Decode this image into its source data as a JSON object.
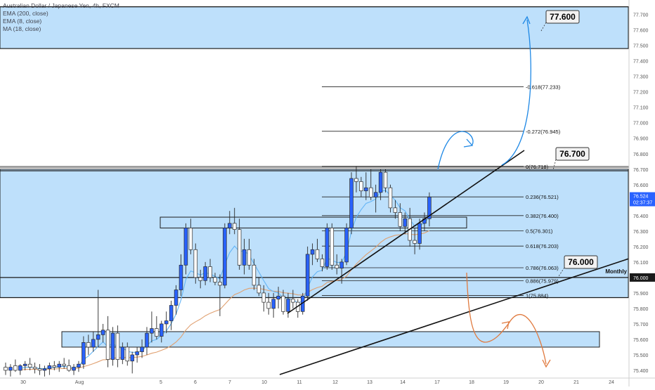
{
  "legend": {
    "title": "Australian Dollar / Japanese Yen, 4h, FXCM",
    "indicators": [
      "EMA (200, close)",
      "EMA (8, close)",
      "MA (18, close)"
    ]
  },
  "price_labels": {
    "current": "76.524",
    "countdown": "02:37:37",
    "monthly": "76.000"
  },
  "annotations": {
    "target_up": "77.600",
    "resistance": "76.700",
    "support": "76.000",
    "monthly_label": "Monthly"
  },
  "colors": {
    "up_candle": "#2962ff",
    "down_candle": "#ffffff",
    "zone_fill": "#bbdefb",
    "ema200": "#e0a070",
    "ema8": "#64b5f6",
    "up_arrow": "#1e88e5",
    "down_arrow": "#e07a3f"
  },
  "chart_data": {
    "type": "candlestick",
    "title": "Australian Dollar / Japanese Yen, 4h, FXCM",
    "ylim": [
      75.35,
      77.78
    ],
    "y_ticks": [
      "77.700",
      "77.600",
      "77.500",
      "77.400",
      "77.300",
      "77.200",
      "77.100",
      "77.000",
      "76.900",
      "76.800",
      "76.700",
      "76.600",
      "76.500",
      "76.400",
      "76.300",
      "76.200",
      "76.100",
      "76.000",
      "75.900",
      "75.800",
      "75.700",
      "75.600",
      "75.500",
      "75.400"
    ],
    "x_ticks": [
      "30",
      "Aug",
      "5",
      "6",
      "7",
      "10",
      "11",
      "12",
      "13",
      "14",
      "17",
      "18",
      "19",
      "20",
      "21",
      "24"
    ],
    "candles": [
      [
        75.42,
        75.45,
        75.37,
        75.4
      ],
      [
        75.4,
        75.44,
        75.36,
        75.42
      ],
      [
        75.43,
        75.47,
        75.39,
        75.4
      ],
      [
        75.4,
        75.44,
        75.37,
        75.43
      ],
      [
        75.43,
        75.46,
        75.4,
        75.44
      ],
      [
        75.44,
        75.48,
        75.4,
        75.42
      ],
      [
        75.42,
        75.45,
        75.38,
        75.41
      ],
      [
        75.41,
        75.44,
        75.37,
        75.4
      ],
      [
        75.4,
        75.43,
        75.36,
        75.41
      ],
      [
        75.41,
        75.45,
        75.37,
        75.43
      ],
      [
        75.43,
        75.46,
        75.4,
        75.42
      ],
      [
        75.42,
        75.46,
        75.39,
        75.44
      ],
      [
        75.44,
        75.48,
        75.41,
        75.43
      ],
      [
        75.43,
        75.47,
        75.39,
        75.4
      ],
      [
        75.4,
        75.44,
        75.37,
        75.42
      ],
      [
        75.42,
        75.46,
        75.39,
        75.44
      ],
      [
        75.44,
        75.62,
        75.41,
        75.58
      ],
      [
        75.58,
        75.63,
        75.5,
        75.55
      ],
      [
        75.55,
        75.65,
        75.52,
        75.6
      ],
      [
        75.6,
        75.92,
        75.55,
        75.63
      ],
      [
        75.63,
        75.7,
        75.58,
        75.66
      ],
      [
        75.66,
        75.75,
        75.42,
        75.47
      ],
      [
        75.47,
        75.68,
        75.43,
        75.64
      ],
      [
        75.64,
        75.69,
        75.42,
        75.47
      ],
      [
        75.47,
        75.58,
        75.44,
        75.55
      ],
      [
        75.55,
        75.58,
        75.43,
        75.46
      ],
      [
        75.46,
        75.52,
        75.38,
        75.5
      ],
      [
        75.5,
        75.55,
        75.45,
        75.52
      ],
      [
        75.52,
        75.6,
        75.48,
        75.55
      ],
      [
        75.55,
        75.68,
        75.5,
        75.64
      ],
      [
        75.64,
        75.78,
        75.58,
        75.67
      ],
      [
        75.67,
        75.75,
        75.6,
        75.62
      ],
      [
        75.62,
        75.72,
        75.58,
        75.7
      ],
      [
        75.7,
        75.78,
        75.64,
        75.72
      ],
      [
        75.72,
        75.85,
        75.66,
        75.82
      ],
      [
        75.82,
        75.95,
        75.76,
        75.92
      ],
      [
        75.92,
        76.15,
        75.88,
        76.08
      ],
      [
        76.08,
        76.35,
        76.02,
        76.32
      ],
      [
        76.32,
        76.38,
        76.15,
        76.18
      ],
      [
        76.18,
        76.22,
        75.96,
        76.0
      ],
      [
        76.0,
        76.05,
        75.93,
        75.98
      ],
      [
        75.98,
        76.1,
        75.95,
        76.07
      ],
      [
        76.07,
        76.12,
        75.97,
        76.0
      ],
      [
        76.0,
        76.03,
        75.95,
        75.97
      ],
      [
        75.97,
        76.02,
        75.75,
        75.95
      ],
      [
        75.95,
        76.35,
        75.93,
        76.32
      ],
      [
        76.32,
        76.43,
        76.28,
        76.35
      ],
      [
        76.35,
        76.45,
        76.28,
        76.31
      ],
      [
        76.31,
        76.38,
        76.05,
        76.08
      ],
      [
        76.08,
        76.25,
        76.02,
        76.18
      ],
      [
        76.18,
        76.25,
        76.05,
        76.08
      ],
      [
        76.08,
        76.12,
        75.92,
        75.95
      ],
      [
        75.95,
        76.0,
        75.88,
        75.9
      ],
      [
        75.9,
        75.95,
        75.78,
        75.84
      ],
      [
        75.84,
        75.9,
        75.76,
        75.8
      ],
      [
        75.8,
        75.9,
        75.74,
        75.86
      ],
      [
        75.86,
        75.94,
        75.8,
        75.88
      ],
      [
        75.88,
        75.92,
        75.76,
        75.78
      ],
      [
        75.78,
        75.9,
        75.74,
        75.86
      ],
      [
        75.86,
        75.92,
        75.8,
        75.84
      ],
      [
        75.84,
        75.86,
        75.74,
        75.78
      ],
      [
        75.78,
        75.9,
        75.76,
        75.88
      ],
      [
        75.88,
        76.2,
        75.85,
        76.15
      ],
      [
        76.15,
        76.22,
        76.08,
        76.18
      ],
      [
        76.18,
        76.25,
        76.1,
        76.12
      ],
      [
        76.12,
        76.15,
        76.04,
        76.07
      ],
      [
        76.07,
        76.35,
        76.05,
        76.32
      ],
      [
        76.32,
        76.35,
        76.05,
        76.08
      ],
      [
        76.08,
        76.15,
        76.02,
        76.06
      ],
      [
        76.06,
        76.12,
        75.96,
        76.1
      ],
      [
        76.1,
        76.35,
        76.08,
        76.32
      ],
      [
        76.32,
        76.68,
        76.28,
        76.64
      ],
      [
        76.64,
        76.72,
        76.55,
        76.62
      ],
      [
        76.62,
        76.65,
        76.52,
        76.56
      ],
      [
        76.56,
        76.68,
        76.5,
        76.58
      ],
      [
        76.58,
        76.7,
        76.5,
        76.52
      ],
      [
        76.52,
        76.6,
        76.42,
        76.55
      ],
      [
        76.55,
        76.7,
        76.5,
        76.68
      ],
      [
        76.68,
        76.7,
        76.55,
        76.58
      ],
      [
        76.58,
        76.6,
        76.42,
        76.45
      ],
      [
        76.45,
        76.5,
        76.38,
        76.42
      ],
      [
        76.42,
        76.48,
        76.3,
        76.33
      ],
      [
        76.33,
        76.42,
        76.28,
        76.38
      ],
      [
        76.38,
        76.45,
        76.2,
        76.24
      ],
      [
        76.24,
        76.32,
        76.15,
        76.22
      ],
      [
        76.22,
        76.38,
        76.18,
        76.35
      ],
      [
        76.35,
        76.42,
        76.3,
        76.38
      ],
      [
        76.38,
        76.55,
        76.33,
        76.52
      ]
    ],
    "fibonacci": [
      {
        "label": "-0.618(77.233)",
        "value": 77.233
      },
      {
        "label": "-0.272(76.945)",
        "value": 76.945
      },
      {
        "label": "0(76.718)",
        "value": 76.718
      },
      {
        "label": "0.236(76.521)",
        "value": 76.521
      },
      {
        "label": "0.382(76.400)",
        "value": 76.4
      },
      {
        "label": "0.5(76.301)",
        "value": 76.301
      },
      {
        "label": "0.618(76.203)",
        "value": 76.203
      },
      {
        "label": "0.786(76.063)",
        "value": 76.063
      },
      {
        "label": "0.886(75.979)",
        "value": 75.979
      },
      {
        "label": "1(75.884)",
        "value": 75.884
      }
    ],
    "zones": [
      {
        "name": "upper-zone",
        "from": 77.48,
        "to": 77.75
      },
      {
        "name": "main-zone",
        "from": 75.87,
        "to": 76.7
      },
      {
        "name": "mid-zone",
        "from": 76.32,
        "to": 76.39
      },
      {
        "name": "lower-zone",
        "from": 75.55,
        "to": 75.65
      }
    ]
  }
}
